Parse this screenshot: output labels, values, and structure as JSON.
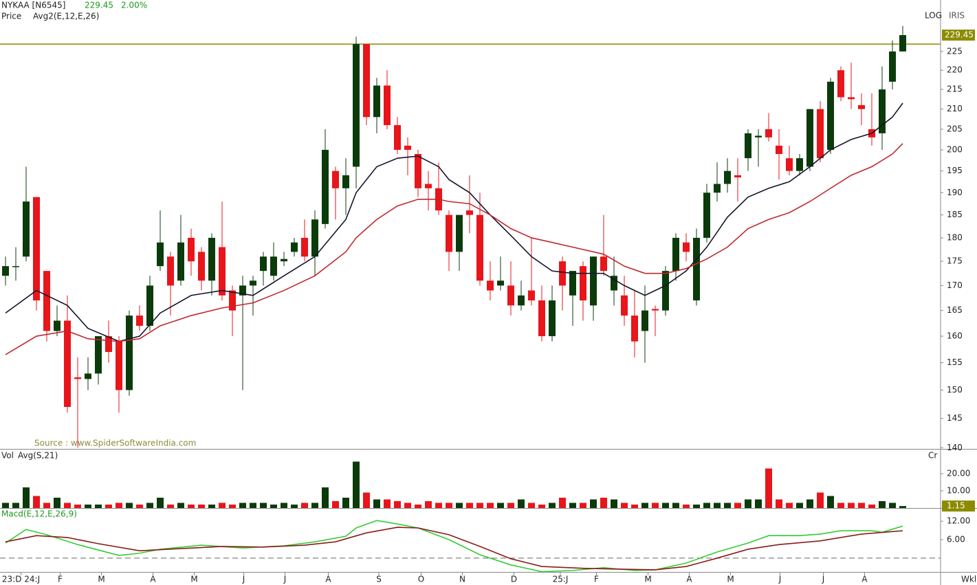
{
  "chart_data": [
    {
      "type": "candlestick",
      "title": "NYKAA [N6545]",
      "last_price": 229.45,
      "change": "2.00%",
      "label": "Price",
      "indicator": "Avg2(E,12,E,26)",
      "scale_label": "LOG",
      "scale_mode": "IRIS",
      "source": "Source : www.SpiderSoftwareIndia.com",
      "period": "Wkl",
      "log": true,
      "ylim": [
        139.8,
        239.3
      ],
      "yticks": [
        140,
        145,
        150,
        155,
        160,
        165,
        170,
        175,
        180,
        185,
        190,
        195,
        200,
        205,
        210,
        215,
        220,
        225
      ],
      "up_color": "#0b3b0b",
      "down_color": "#e8151b",
      "hline": 227,
      "hline_color": "#8b8b00",
      "open": [
        172,
        174,
        176,
        189,
        173,
        161,
        163,
        152.3,
        152,
        153,
        160,
        159,
        150,
        164,
        162,
        174,
        176,
        171,
        180,
        177,
        171,
        178,
        169,
        168,
        170,
        173,
        172,
        175,
        177,
        180,
        176,
        183,
        195,
        191,
        196,
        227,
        208,
        216,
        206,
        201,
        199,
        192,
        191,
        185,
        177,
        186,
        185,
        171,
        170,
        170,
        166,
        169,
        167,
        160,
        175,
        168,
        174,
        166,
        176,
        169,
        168,
        164,
        161,
        165.3,
        165,
        173,
        179,
        167,
        180,
        190,
        192,
        194,
        198,
        203,
        205,
        201,
        198,
        195,
        196,
        210,
        200,
        220,
        213,
        211,
        205,
        204,
        217,
        225
      ],
      "high": [
        176,
        178,
        196,
        189,
        173,
        166,
        168,
        156,
        156,
        160,
        163,
        160,
        165,
        166,
        172,
        186,
        177,
        185,
        182,
        178,
        181,
        188,
        170,
        172,
        172,
        177,
        179,
        177,
        180,
        184,
        186,
        205,
        196,
        198,
        229,
        227,
        218,
        220,
        208,
        203,
        200,
        195,
        197,
        186,
        185,
        194,
        190,
        175,
        176,
        175,
        171,
        180,
        170,
        170,
        176,
        173,
        175,
        176,
        185,
        176,
        172,
        169,
        170,
        166,
        174,
        181,
        181,
        182,
        192,
        197,
        198,
        198,
        205,
        205,
        209,
        205,
        201,
        199,
        210,
        212,
        218,
        221,
        222,
        214,
        214,
        221,
        228,
        232
      ],
      "low": [
        170,
        171,
        175,
        165,
        159,
        160,
        146,
        140,
        150,
        151,
        155,
        146,
        149,
        161,
        161,
        173,
        164,
        170,
        172,
        169,
        168,
        167,
        160,
        150,
        164,
        170,
        171,
        174,
        176,
        175,
        172,
        182,
        184,
        185,
        191,
        206,
        204,
        205,
        199,
        194,
        189,
        186,
        185,
        173,
        173,
        181,
        170,
        167,
        169,
        164,
        165,
        166,
        159,
        159,
        165,
        162,
        163,
        163,
        172,
        166,
        162,
        156,
        155,
        160,
        164,
        171,
        175,
        166,
        179,
        188,
        190,
        188,
        195,
        196,
        202,
        193,
        194,
        194,
        195,
        197,
        199,
        212,
        210,
        206,
        201,
        200,
        215,
        225
      ],
      "close": [
        174,
        174,
        188,
        167,
        161,
        163,
        147,
        152,
        153,
        160,
        157,
        150,
        164,
        162,
        170,
        179,
        170,
        179,
        175,
        171,
        180,
        168,
        165,
        170,
        171,
        176,
        176,
        175.5,
        179,
        176,
        184,
        200,
        191,
        194,
        227,
        208,
        216,
        206,
        200,
        200,
        191,
        191,
        186,
        177,
        185,
        185,
        171,
        169,
        171,
        166,
        168,
        167,
        160,
        167,
        170,
        173,
        167,
        176,
        173,
        172,
        164,
        159,
        165,
        165,
        173,
        180,
        177,
        180,
        190,
        192,
        195,
        193.5,
        204,
        203.4,
        203,
        199,
        195,
        198,
        210,
        198,
        217,
        213,
        212.5,
        210,
        203,
        215,
        225,
        229.45
      ],
      "series": [
        {
          "color": "#14142b",
          "x": [
            0,
            3,
            6,
            8,
            11,
            13,
            15,
            18,
            21,
            24,
            27,
            30,
            33,
            34,
            36,
            38,
            40,
            42,
            43,
            45,
            47,
            49,
            51,
            53,
            55,
            58,
            60,
            62,
            64,
            66,
            68,
            70,
            72,
            74,
            76,
            78,
            80,
            82,
            84,
            86,
            87
          ],
          "values": [
            164.5,
            169,
            166,
            161.5,
            159,
            160,
            164.5,
            168,
            169,
            168,
            172,
            176,
            184,
            190,
            196,
            198,
            198.5,
            196,
            193,
            190,
            185,
            180.5,
            176,
            173,
            172.5,
            172.5,
            170,
            168,
            170,
            173,
            178,
            184.5,
            189,
            191,
            192.5,
            196,
            200,
            202.5,
            204,
            208,
            211.5
          ]
        },
        {
          "color": "#c0272d",
          "x": [
            0,
            3,
            6,
            8,
            11,
            13,
            15,
            18,
            21,
            24,
            27,
            30,
            33,
            34,
            36,
            38,
            40,
            42,
            43,
            45,
            47,
            49,
            51,
            53,
            55,
            58,
            60,
            62,
            64,
            66,
            68,
            70,
            72,
            74,
            76,
            78,
            80,
            82,
            84,
            86,
            87
          ],
          "values": [
            156.5,
            160,
            161,
            159.5,
            159,
            159.5,
            162,
            164,
            165.5,
            166.5,
            169,
            172,
            177,
            180,
            184,
            187,
            188.5,
            188.5,
            188,
            187.5,
            185,
            182,
            180,
            179,
            178,
            176.5,
            174,
            172.5,
            172.5,
            173.5,
            175.5,
            178,
            182,
            184,
            185.5,
            188,
            191,
            194,
            196,
            199,
            201.5
          ]
        }
      ],
      "x_labels": [
        {
          "value": 1.5,
          "label": "23:D 24:J"
        },
        {
          "value": 5.3,
          "label": "F"
        },
        {
          "value": 9.3,
          "label": "M"
        },
        {
          "value": 14.3,
          "label": "A"
        },
        {
          "value": 18.3,
          "label": "M"
        },
        {
          "value": 23.1,
          "label": "J"
        },
        {
          "value": 27.1,
          "label": "J"
        },
        {
          "value": 31.3,
          "label": "A"
        },
        {
          "value": 36.2,
          "label": "S"
        },
        {
          "value": 40.3,
          "label": "O"
        },
        {
          "value": 44.3,
          "label": "N"
        },
        {
          "value": 49.3,
          "label": "D"
        },
        {
          "value": 53.8,
          "label": "25:J"
        },
        {
          "value": 57.3,
          "label": "F"
        },
        {
          "value": 62.3,
          "label": "M"
        },
        {
          "value": 66.3,
          "label": "A"
        },
        {
          "value": 70.3,
          "label": "M"
        },
        {
          "value": 75.1,
          "label": "J"
        },
        {
          "value": 79.3,
          "label": "J"
        },
        {
          "value": 83.3,
          "label": "A"
        }
      ]
    },
    {
      "type": "bar",
      "label": "Vol",
      "indicator": "Avg(S,21)",
      "unit": "Cr",
      "ylim": [
        0,
        33.6
      ],
      "yticks": [
        {
          "value": 10,
          "label": "10.00"
        },
        {
          "value": 20,
          "label": "20.00"
        }
      ],
      "values": [
        3,
        3,
        12,
        7,
        3,
        6,
        3,
        2,
        2,
        2,
        2,
        3,
        3,
        2,
        3,
        6,
        2,
        3,
        2,
        2,
        2,
        3,
        2,
        3,
        3,
        3,
        2,
        3,
        2,
        3,
        3,
        12,
        4,
        6,
        27,
        9,
        5,
        5,
        4,
        3,
        2,
        4,
        3,
        3,
        3,
        3,
        3,
        3,
        3,
        3,
        5,
        3,
        2,
        3,
        6,
        3,
        3,
        5,
        6,
        5,
        3,
        2,
        3,
        3,
        3,
        3,
        2,
        2,
        3,
        3,
        3,
        3,
        5,
        5,
        23,
        5,
        3,
        3,
        5,
        9,
        7,
        3,
        3,
        3,
        2,
        4,
        3,
        1.15
      ]
    },
    {
      "type": "line",
      "title": "Macd(E,12,E,26,9)",
      "ylim": [
        -4.7,
        15.6
      ],
      "yticks": [
        {
          "value": 6,
          "label": "6.00"
        },
        {
          "value": 12,
          "label": "12.00"
        }
      ],
      "reference_line": 0,
      "series": [
        {
          "color": "#33cc33",
          "x": [
            0,
            2,
            4,
            7,
            11,
            13,
            15,
            19,
            23,
            27,
            30,
            33,
            34,
            36,
            38,
            40,
            43,
            46,
            49,
            52,
            55,
            58,
            61,
            63,
            66,
            69,
            72,
            74,
            77,
            79,
            81,
            84,
            85,
            87
          ],
          "values": [
            4.9,
            9.3,
            7.6,
            4.4,
            0.9,
            1.6,
            2.9,
            4.2,
            3.3,
            4,
            5.3,
            7.1,
            9.8,
            12.2,
            11.1,
            9.8,
            6,
            1.1,
            -2.2,
            -4.4,
            -4,
            -3.1,
            -4,
            -3.8,
            -1.6,
            2,
            4.9,
            7.3,
            7.3,
            7.8,
            8.9,
            8.9,
            8.4,
            10.4
          ]
        },
        {
          "color": "#8b1a1a",
          "x": [
            0,
            3,
            6,
            9,
            13,
            17,
            21,
            25,
            29,
            32,
            35,
            38,
            40,
            43,
            46,
            49,
            52,
            56,
            60,
            63,
            66,
            69,
            72,
            75,
            79,
            83,
            87
          ],
          "values": [
            5.3,
            7.3,
            6.7,
            4.7,
            2.4,
            3.1,
            3.8,
            3.6,
            4.2,
            5.3,
            8.2,
            10,
            9.8,
            7.6,
            3.8,
            -0.2,
            -2.7,
            -3.3,
            -3.6,
            -3.8,
            -2.7,
            0,
            2.9,
            4.4,
            5.6,
            7.8,
            8.9
          ]
        }
      ]
    }
  ]
}
